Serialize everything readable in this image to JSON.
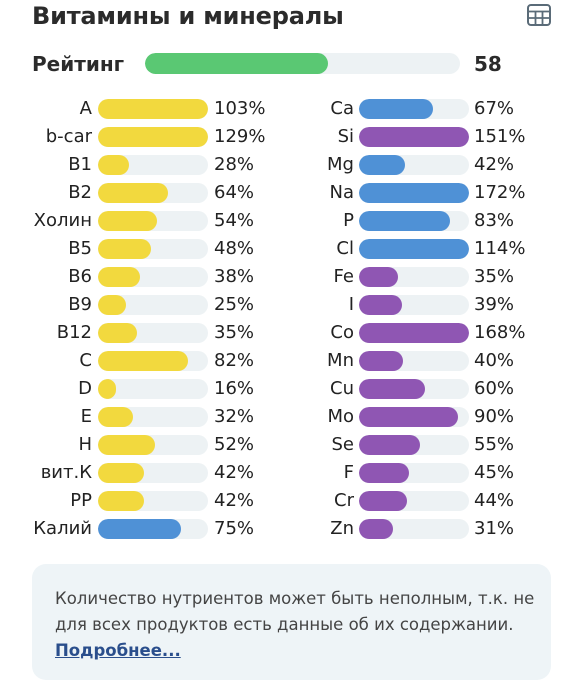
{
  "header": {
    "title": "Витамины и минералы",
    "icon": "table-icon"
  },
  "rating": {
    "label": "Рейтинг",
    "value": "58",
    "fraction": 0.58,
    "color": "#5ac873"
  },
  "colors": {
    "vitamin": "#f2d93e",
    "mineral_blue": "#4f91d6",
    "mineral_purple": "#8f56b3",
    "track": "#edf2f4"
  },
  "vitamins": [
    {
      "name": "A",
      "percent": "103%",
      "value": 103,
      "color": "vitamin"
    },
    {
      "name": "b-car",
      "percent": "129%",
      "value": 129,
      "color": "vitamin"
    },
    {
      "name": "B1",
      "percent": "28%",
      "value": 28,
      "color": "vitamin"
    },
    {
      "name": "B2",
      "percent": "64%",
      "value": 64,
      "color": "vitamin"
    },
    {
      "name": "Холин",
      "percent": "54%",
      "value": 54,
      "color": "vitamin"
    },
    {
      "name": "B5",
      "percent": "48%",
      "value": 48,
      "color": "vitamin"
    },
    {
      "name": "B6",
      "percent": "38%",
      "value": 38,
      "color": "vitamin"
    },
    {
      "name": "B9",
      "percent": "25%",
      "value": 25,
      "color": "vitamin"
    },
    {
      "name": "B12",
      "percent": "35%",
      "value": 35,
      "color": "vitamin"
    },
    {
      "name": "C",
      "percent": "82%",
      "value": 82,
      "color": "vitamin"
    },
    {
      "name": "D",
      "percent": "16%",
      "value": 16,
      "color": "vitamin"
    },
    {
      "name": "E",
      "percent": "32%",
      "value": 32,
      "color": "vitamin"
    },
    {
      "name": "H",
      "percent": "52%",
      "value": 52,
      "color": "vitamin"
    },
    {
      "name": "вит.К",
      "percent": "42%",
      "value": 42,
      "color": "vitamin"
    },
    {
      "name": "PP",
      "percent": "42%",
      "value": 42,
      "color": "vitamin"
    },
    {
      "name": "Калий",
      "percent": "75%",
      "value": 75,
      "color": "mineral_blue"
    }
  ],
  "minerals": [
    {
      "name": "Ca",
      "percent": "67%",
      "value": 67,
      "color": "mineral_blue"
    },
    {
      "name": "Si",
      "percent": "151%",
      "value": 151,
      "color": "mineral_purple"
    },
    {
      "name": "Mg",
      "percent": "42%",
      "value": 42,
      "color": "mineral_blue"
    },
    {
      "name": "Na",
      "percent": "172%",
      "value": 172,
      "color": "mineral_blue"
    },
    {
      "name": "P",
      "percent": "83%",
      "value": 83,
      "color": "mineral_blue"
    },
    {
      "name": "Cl",
      "percent": "114%",
      "value": 114,
      "color": "mineral_blue"
    },
    {
      "name": "Fe",
      "percent": "35%",
      "value": 35,
      "color": "mineral_purple"
    },
    {
      "name": "I",
      "percent": "39%",
      "value": 39,
      "color": "mineral_purple"
    },
    {
      "name": "Co",
      "percent": "168%",
      "value": 168,
      "color": "mineral_purple"
    },
    {
      "name": "Mn",
      "percent": "40%",
      "value": 40,
      "color": "mineral_purple"
    },
    {
      "name": "Cu",
      "percent": "60%",
      "value": 60,
      "color": "mineral_purple"
    },
    {
      "name": "Mo",
      "percent": "90%",
      "value": 90,
      "color": "mineral_purple"
    },
    {
      "name": "Se",
      "percent": "55%",
      "value": 55,
      "color": "mineral_purple"
    },
    {
      "name": "F",
      "percent": "45%",
      "value": 45,
      "color": "mineral_purple"
    },
    {
      "name": "Cr",
      "percent": "44%",
      "value": 44,
      "color": "mineral_purple"
    },
    {
      "name": "Zn",
      "percent": "31%",
      "value": 31,
      "color": "mineral_purple"
    }
  ],
  "note": {
    "text": "Количество нутриентов может быть неполным, т.к. не для всех продуктов есть данные об их содержа­нии.",
    "link_label": "Подробнее..."
  }
}
